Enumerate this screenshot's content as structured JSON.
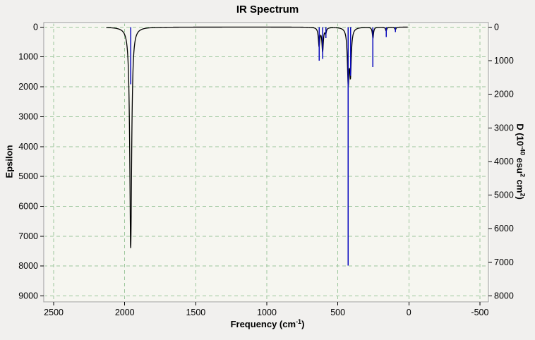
{
  "window": {
    "background": "#f1f0ee"
  },
  "chart_data": {
    "type": "line",
    "subtype": "IR spectrum: blue intensity sticks (right axis) with black Lorentzian envelope (left axis); both y axes inverted (0 at top), x axis reversed",
    "title": "IR Spectrum",
    "plot_background": "#f6f6f0",
    "frame_colors": {
      "outer": "#9a9a9a",
      "inner_highlight": "#ffffff"
    },
    "grid": {
      "show": true,
      "style": "dashed",
      "color": "#9cc79c",
      "dash": "5,4"
    },
    "x_axis": {
      "label": "Frequency (cm⁻¹)",
      "label_parts": {
        "pre": "Frequency (cm",
        "sup": "-1",
        "post": ")"
      },
      "ticks": [
        2500,
        2000,
        1500,
        1000,
        500,
        0,
        -500
      ],
      "max": 2570,
      "min": -560,
      "direction": "reversed (high frequency at left)"
    },
    "left_axis": {
      "label": "Epsilon",
      "ticks": [
        0,
        1000,
        2000,
        3000,
        4000,
        5000,
        6000,
        7000,
        8000,
        9000
      ],
      "min": -150,
      "max": 9200,
      "orientation": "inverted (0 at top)"
    },
    "right_axis": {
      "label": "D (10⁻⁴⁰ esu² cm²)",
      "label_parts": {
        "p1": "D (10",
        "s1": "-40",
        "p2": " esu",
        "s2": "2",
        "p3": " cm",
        "s3": "2",
        "p4": ")"
      },
      "ticks": [
        0,
        1000,
        2000,
        3000,
        4000,
        5000,
        6000,
        7000,
        8000
      ],
      "min": -135,
      "max": 8180,
      "orientation": "inverted (0 at top)"
    },
    "epsilon_curve": {
      "color": "#000000",
      "line_width": 1.3,
      "sample_range": [
        2130,
        8
      ],
      "peaks": [
        {
          "freq": 1958,
          "epsilon": 7400,
          "width": 8
        },
        {
          "freq": 632,
          "epsilon": 620,
          "width": 6
        },
        {
          "freq": 607,
          "epsilon": 800,
          "width": 6
        },
        {
          "freq": 585,
          "epsilon": 180,
          "width": 5
        },
        {
          "freq": 427,
          "epsilon": 1750,
          "width": 7
        },
        {
          "freq": 411,
          "epsilon": 1450,
          "width": 7
        },
        {
          "freq": 253,
          "epsilon": 380,
          "width": 5
        },
        {
          "freq": 160,
          "epsilon": 130,
          "width": 5
        },
        {
          "freq": 95,
          "epsilon": 90,
          "width": 5
        }
      ]
    },
    "d_sticks": {
      "color": "#0909be",
      "line_width": 1.5,
      "sticks": [
        {
          "freq": 1958,
          "d": 1700
        },
        {
          "freq": 632,
          "d": 1000
        },
        {
          "freq": 607,
          "d": 950
        },
        {
          "freq": 585,
          "d": 330
        },
        {
          "freq": 427,
          "d": 7100
        },
        {
          "freq": 411,
          "d": 1450
        },
        {
          "freq": 253,
          "d": 1190
        },
        {
          "freq": 160,
          "d": 300
        },
        {
          "freq": 95,
          "d": 150
        }
      ]
    }
  }
}
